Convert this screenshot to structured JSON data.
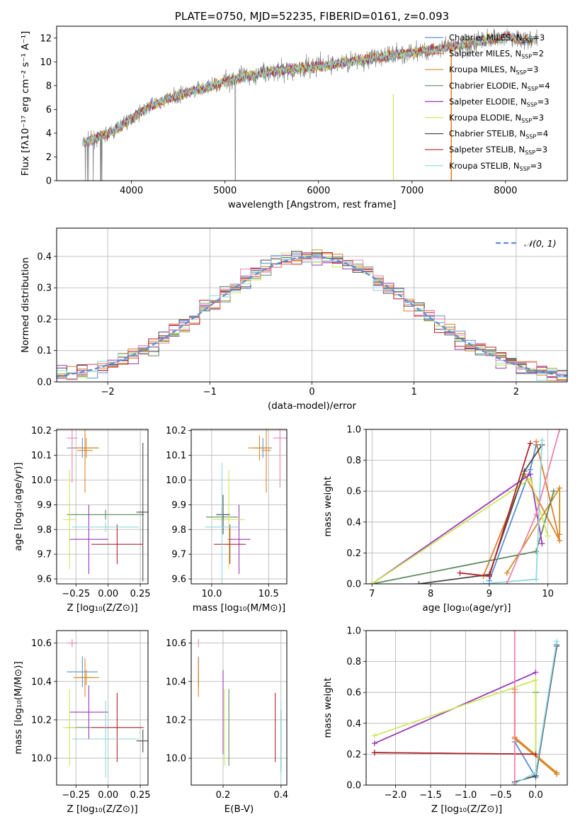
{
  "colors": [
    "#5b8fd6",
    "#e0802a",
    "#cf8f22",
    "#5e8a5f",
    "#9a39b8",
    "#cde85a",
    "#4a4a4a",
    "#b3242b",
    "#8fd7dd",
    "#ee82b0"
  ],
  "chart_data": [
    {
      "id": "spectrum",
      "type": "line",
      "title": "PLATE=0750, MJD=52235, FIBERID=0161, z=0.093",
      "xlabel": "wavelength [Angstrom, rest frame]",
      "ylabel": "Flux [fλ10⁻¹⁷ erg cm⁻² s⁻¹ A⁻¹]",
      "xlim": [
        3200,
        8660
      ],
      "ylim": [
        0,
        13
      ],
      "xticks": [
        4000,
        5000,
        6000,
        7000,
        8000
      ],
      "yticks": [
        0,
        2,
        4,
        6,
        8,
        10,
        12
      ],
      "legend": [
        "Chabrier MILES, N_SSP=3",
        "Salpeter MILES, N_SSP=2",
        "Kroupa MILES, N_SSP=3",
        "Chabrier ELODIE, N_SSP=4",
        "Salpeter ELODIE, N_SSP=3",
        "Kroupa ELODIE, N_SSP=3",
        "Chabrier STELIB, N_SSP=4",
        "Salpeter STELIB, N_SSP=3",
        "Kroupa STELIB, N_SSP=3"
      ],
      "continuum": {
        "x": [
          3480,
          3600,
          3800,
          4000,
          4200,
          4500,
          4800,
          5000,
          5500,
          6000,
          6500,
          7000,
          7300,
          7500,
          8000,
          8300
        ],
        "y": [
          3.2,
          3.5,
          4.1,
          5.2,
          6.3,
          7.2,
          7.8,
          8.4,
          9.2,
          9.6,
          10.2,
          10.8,
          11.1,
          11.4,
          12.1,
          11.8
        ]
      }
    },
    {
      "id": "residuals",
      "type": "line",
      "xlabel": "(data-model)/error",
      "ylabel": "Normed distribution",
      "xlim": [
        -2.5,
        2.5
      ],
      "ylim": [
        0,
        0.49
      ],
      "xticks": [
        -2,
        -1,
        0,
        1,
        2
      ],
      "yticks": [
        0,
        0.1,
        0.2,
        0.3,
        0.4
      ],
      "legend": [
        "𝒩(0, 1)"
      ],
      "grid": true
    },
    {
      "id": "age_vs_Z",
      "type": "scatter",
      "xlabel": "Z [log₁₀(Z/Z⊙)]",
      "ylabel": "age  [log₁₀(age/yr)]",
      "xlim": [
        -0.4,
        0.31
      ],
      "ylim": [
        9.58,
        10.205
      ],
      "xticks": [
        -0.25,
        0,
        0.25
      ],
      "yticks": [
        9.6,
        9.7,
        9.8,
        9.9,
        10.0,
        10.1,
        10.2
      ],
      "grid": true,
      "points": [
        {
          "x": -0.2,
          "y": 10.13,
          "xerr": 0.12,
          "yerr": 0.04
        },
        {
          "x": -0.18,
          "y": 10.12,
          "xerr": 0.06,
          "yerr": 0.17
        },
        {
          "x": -0.17,
          "y": 10.13,
          "xerr": 0.1,
          "yerr": 0.04
        },
        {
          "x": -0.02,
          "y": 9.86,
          "xerr": 0.3,
          "yerr": 0.02
        },
        {
          "x": -0.15,
          "y": 9.76,
          "xerr": 0.15,
          "yerr": 0.14
        },
        {
          "x": -0.3,
          "y": 9.84,
          "xerr": 0.05,
          "yerr": 0.2
        },
        {
          "x": 0.27,
          "y": 9.87,
          "xerr": 0.05,
          "yerr": 0.28
        },
        {
          "x": 0.07,
          "y": 9.74,
          "xerr": 0.2,
          "yerr": 0.08
        },
        {
          "x": -0.02,
          "y": 9.81,
          "xerr": 0.26,
          "yerr": 0.02
        },
        {
          "x": -0.28,
          "y": 10.17,
          "xerr": 0.04,
          "yerr": 0.18
        }
      ]
    },
    {
      "id": "age_vs_mass",
      "type": "scatter",
      "xlabel": "mass [log₁₀(M/M⊙)]",
      "xlim": [
        9.82,
        10.66
      ],
      "ylim": [
        9.58,
        10.205
      ],
      "xticks": [
        10.0,
        10.5
      ],
      "yticks": [
        9.6,
        9.7,
        9.8,
        9.9,
        10.0,
        10.1,
        10.2
      ],
      "grid": true,
      "points": [
        {
          "x": 10.45,
          "y": 10.13,
          "xerr": 0.08,
          "yerr": 0.04
        },
        {
          "x": 10.48,
          "y": 10.12,
          "xerr": 0.04,
          "yerr": 0.17
        },
        {
          "x": 10.42,
          "y": 10.13,
          "xerr": 0.1,
          "yerr": 0.05
        },
        {
          "x": 10.09,
          "y": 9.85,
          "xerr": 0.14,
          "yerr": 0.04
        },
        {
          "x": 10.24,
          "y": 9.76,
          "xerr": 0.1,
          "yerr": 0.14
        },
        {
          "x": 10.15,
          "y": 9.84,
          "xerr": 0.14,
          "yerr": 0.2
        },
        {
          "x": 10.1,
          "y": 9.86,
          "xerr": 0.06,
          "yerr": 0.08
        },
        {
          "x": 10.16,
          "y": 9.74,
          "xerr": 0.14,
          "yerr": 0.08
        },
        {
          "x": 10.09,
          "y": 9.81,
          "xerr": 0.15,
          "yerr": 0.26
        },
        {
          "x": 10.6,
          "y": 10.17,
          "xerr": 0.06,
          "yerr": 0.2
        }
      ]
    },
    {
      "id": "mw_vs_age",
      "type": "line",
      "xlabel": "age  [log₁₀(age/yr)]",
      "ylabel": "mass weight",
      "xlim": [
        6.9,
        10.33
      ],
      "ylim": [
        0,
        1
      ],
      "xticks": [
        7,
        8,
        9,
        10
      ],
      "yticks": [
        0,
        0.2,
        0.4,
        0.6,
        0.8,
        1.0
      ],
      "grid": true,
      "series": [
        {
          "x": [
            9.0,
            9.7,
            9.8
          ],
          "y": [
            0.02,
            0.74,
            0.9
          ]
        },
        {
          "x": [
            8.9,
            9.6,
            10.2,
            9.8
          ],
          "y": [
            0.05,
            0.71,
            0.28,
            0.92
          ]
        },
        {
          "x": [
            9.3,
            10.2,
            10.2
          ],
          "y": [
            0.07,
            0.62,
            0.32
          ]
        },
        {
          "x": [
            7.0,
            9.8,
            10.1
          ],
          "y": [
            0.0,
            0.21,
            0.6
          ]
        },
        {
          "x": [
            7.0,
            9.7,
            9.9
          ],
          "y": [
            0.0,
            0.71,
            0.26
          ]
        },
        {
          "x": [
            7.0,
            9.7,
            10.0
          ],
          "y": [
            0.0,
            0.68,
            0.31
          ]
        },
        {
          "x": [
            7.8,
            9.0,
            9.6,
            9.9
          ],
          "y": [
            0.0,
            0.06,
            0.73,
            0.9
          ]
        },
        {
          "x": [
            8.5,
            9.0,
            9.7
          ],
          "y": [
            0.07,
            0.05,
            0.91
          ]
        },
        {
          "x": [
            8.9,
            9.8,
            9.9
          ],
          "y": [
            0.0,
            0.03,
            0.93
          ]
        },
        {
          "x": [
            9.3,
            9.8,
            10.2
          ],
          "y": [
            0.0,
            0.45,
            1.0
          ]
        }
      ]
    },
    {
      "id": "mass_vs_Z",
      "type": "scatter",
      "xlabel": "Z [log₁₀(Z/Z⊙)]",
      "ylabel": "mass [log₁₀(M/M⊙)]",
      "xlim": [
        -0.4,
        0.31
      ],
      "ylim": [
        9.86,
        10.665
      ],
      "xticks": [
        -0.25,
        0,
        0.25
      ],
      "yticks": [
        10.0,
        10.2,
        10.4,
        10.6
      ],
      "grid": true,
      "points": [
        {
          "x": -0.2,
          "y": 10.45,
          "xerr": 0.12,
          "yerr": 0.08
        },
        {
          "x": -0.18,
          "y": 10.42,
          "xerr": 0.06,
          "yerr": 0.1
        },
        {
          "x": -0.17,
          "y": 10.42,
          "xerr": 0.1,
          "yerr": 0.04
        },
        {
          "x": -0.02,
          "y": 10.16,
          "xerr": 0.3,
          "yerr": 0.02
        },
        {
          "x": -0.15,
          "y": 10.24,
          "xerr": 0.15,
          "yerr": 0.14
        },
        {
          "x": -0.3,
          "y": 10.16,
          "xerr": 0.05,
          "yerr": 0.2
        },
        {
          "x": 0.27,
          "y": 10.09,
          "xerr": 0.05,
          "yerr": 0.06
        },
        {
          "x": 0.07,
          "y": 10.16,
          "xerr": 0.2,
          "yerr": 0.18
        },
        {
          "x": -0.02,
          "y": 10.1,
          "xerr": 0.26,
          "yerr": 0.2
        },
        {
          "x": -0.28,
          "y": 10.6,
          "xerr": 0.04,
          "yerr": 0.02
        }
      ]
    },
    {
      "id": "mass_vs_ebv",
      "type": "scatter",
      "xlabel": "E(B-V)",
      "xlim": [
        0.09,
        0.42
      ],
      "ylim": [
        9.86,
        10.665
      ],
      "xticks": [
        0.2,
        0.4
      ],
      "yticks": [
        10.0,
        10.2,
        10.4,
        10.6
      ],
      "grid": true,
      "points": [
        {
          "x": 0.115,
          "y": 10.45,
          "xerr": 0,
          "yerr": 0.08
        },
        {
          "x": 0.115,
          "y": 10.42,
          "xerr": 0,
          "yerr": 0.1
        },
        {
          "x": 0.115,
          "y": 10.42,
          "xerr": 0,
          "yerr": 0.04
        },
        {
          "x": 0.22,
          "y": 10.16,
          "xerr": 0,
          "yerr": 0.2
        },
        {
          "x": 0.2,
          "y": 10.24,
          "xerr": 0,
          "yerr": 0.22
        },
        {
          "x": 0.205,
          "y": 10.16,
          "xerr": 0,
          "yerr": 0.2
        },
        {
          "x": 0.4,
          "y": 10.09,
          "xerr": 0,
          "yerr": 0.16
        },
        {
          "x": 0.38,
          "y": 10.16,
          "xerr": 0,
          "yerr": 0.18
        },
        {
          "x": 0.4,
          "y": 10.1,
          "xerr": 0,
          "yerr": 0.2
        },
        {
          "x": 0.115,
          "y": 10.6,
          "xerr": 0,
          "yerr": 0.02
        }
      ]
    },
    {
      "id": "mw_vs_Z",
      "type": "line",
      "xlabel": "Z [log₁₀(Z/Z⊙)]",
      "ylabel": "mass weight",
      "xlim": [
        -2.42,
        0.45
      ],
      "ylim": [
        0,
        1
      ],
      "xticks": [
        -2.0,
        -1.5,
        -1.0,
        -0.5,
        0.0
      ],
      "yticks": [
        0,
        0.2,
        0.4,
        0.6,
        0.8,
        1.0
      ],
      "grid": true,
      "series": [
        {
          "x": [
            -0.3,
            0.0,
            0.3
          ],
          "y": [
            0.28,
            0.05,
            0.91
          ]
        },
        {
          "x": [
            -0.3,
            -0.3,
            0.3
          ],
          "y": [
            0.6,
            0.31,
            0.08
          ]
        },
        {
          "x": [
            -0.3,
            -0.3,
            0.3
          ],
          "y": [
            0.62,
            0.3,
            0.07
          ]
        },
        {
          "x": [
            -2.3,
            0.0,
            0.0
          ],
          "y": [
            0.21,
            0.2,
            0.6
          ]
        },
        {
          "x": [
            -2.3,
            0.0
          ],
          "y": [
            0.27,
            0.73
          ]
        },
        {
          "x": [
            -2.3,
            0.0,
            0.0
          ],
          "y": [
            0.32,
            0.68,
            0.2
          ]
        },
        {
          "x": [
            -0.3,
            0.0,
            0.3
          ],
          "y": [
            0.02,
            0.06,
            0.9
          ]
        },
        {
          "x": [
            -2.3,
            0.0
          ],
          "y": [
            0.21,
            0.2
          ]
        },
        {
          "x": [
            -0.3,
            0.0,
            0.3
          ],
          "y": [
            0.01,
            0.08,
            0.93
          ]
        },
        {
          "x": [
            -0.3,
            -0.3
          ],
          "y": [
            0.0,
            1.0
          ]
        }
      ]
    }
  ]
}
